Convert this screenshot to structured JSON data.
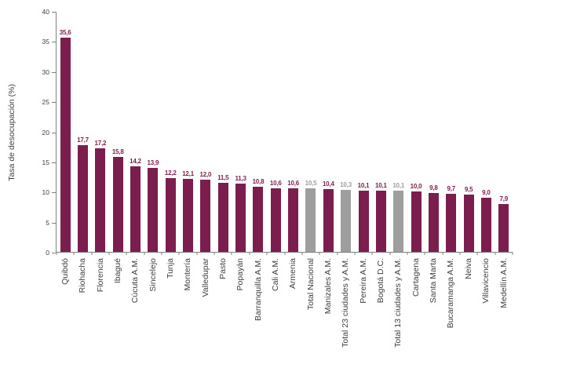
{
  "chart_data": {
    "type": "bar",
    "title": "",
    "xlabel": "",
    "ylabel": "Tasa de desocupación (%)",
    "ylim": [
      0,
      40
    ],
    "yticks": [
      0,
      5,
      10,
      15,
      20,
      25,
      30,
      35,
      40
    ],
    "grid": false,
    "legend": "none",
    "decimal_separator": ",",
    "categories": [
      "Quibdó",
      "Riohacha",
      "Florencia",
      "Ibagué",
      "Cúcuta A.M.",
      "Sincelejo",
      "Tunja",
      "Montería",
      "Valledupar",
      "Pasto",
      "Popayán",
      "Barranquilla A.M.",
      "Cali A.M.",
      "Armenia",
      "Total Nacional",
      "Manizales A.M.",
      "Total 23 ciudades y A.M.",
      "Pereira A.M.",
      "Bogotá D.C.",
      "Total 13 ciudades y A.M.",
      "Cartagena",
      "Santa Marta",
      "Bucaramanga A.M.",
      "Neiva",
      "Villavicencio",
      "Medellín A.M."
    ],
    "values": [
      35.6,
      17.7,
      17.2,
      15.8,
      14.2,
      13.9,
      12.2,
      12.1,
      12.0,
      11.5,
      11.3,
      10.8,
      10.6,
      10.6,
      10.5,
      10.4,
      10.3,
      10.1,
      10.1,
      10.1,
      10.0,
      9.8,
      9.7,
      9.5,
      9.0,
      7.9
    ],
    "value_labels": [
      "35,6",
      "17,7",
      "17,2",
      "15,8",
      "14,2",
      "13,9",
      "12,2",
      "12,1",
      "12,0",
      "11,5",
      "11,3",
      "10,8",
      "10,6",
      "10,6",
      "10,5",
      "10,4",
      "10,3",
      "10,1",
      "10,1",
      "10,1",
      "10,0",
      "9,8",
      "9,7",
      "9,5",
      "9,0",
      "7,9"
    ],
    "total_indices": [
      14,
      16,
      19
    ],
    "colors": {
      "bar": "#7B1E4D",
      "total": "#9E9E9E",
      "axis": "#808080",
      "text": "#404040"
    }
  }
}
